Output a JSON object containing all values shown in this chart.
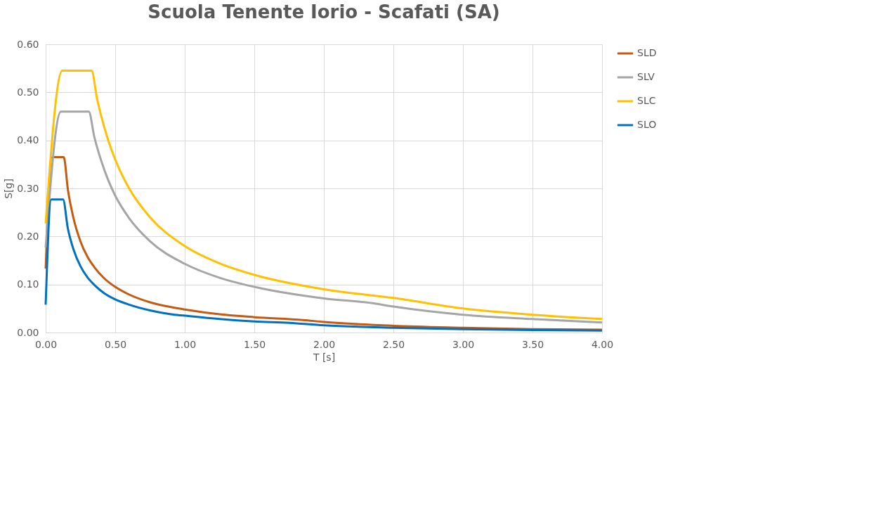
{
  "chart_data": {
    "type": "line",
    "title": "Scuola Tenente Iorio - Scafati (SA)",
    "xlabel": "T [s]",
    "ylabel": "S[g]",
    "xlim": [
      0,
      4
    ],
    "xticks": [
      {
        "value": 0,
        "label": "0.00"
      },
      {
        "value": 0.5,
        "label": "0.50"
      },
      {
        "value": 1,
        "label": "1.00"
      },
      {
        "value": 1.5,
        "label": "1.50"
      },
      {
        "value": 2,
        "label": "2.00"
      },
      {
        "value": 2.5,
        "label": "2.50"
      },
      {
        "value": 3,
        "label": "3.00"
      },
      {
        "value": 3.5,
        "label": "3.50"
      },
      {
        "value": 4,
        "label": "4.00"
      }
    ],
    "ylim": [
      0,
      0.6
    ],
    "yticks": [
      {
        "value": 0,
        "label": "0.00"
      },
      {
        "value": 0.1,
        "label": "0.10"
      },
      {
        "value": 0.2,
        "label": "0.20"
      },
      {
        "value": 0.3,
        "label": "0.30"
      },
      {
        "value": 0.4,
        "label": "0.40"
      },
      {
        "value": 0.5,
        "label": "0.50"
      },
      {
        "value": 0.6,
        "label": "0.60"
      }
    ],
    "grid": true,
    "legend": "right",
    "marker": "none",
    "line_style": "solid",
    "series": [
      {
        "name": "SLD",
        "color": "#c55a11",
        "x": [
          0,
          0.045,
          0.13,
          0.16,
          0.2,
          0.25,
          0.3,
          0.35,
          0.42,
          0.5,
          0.6,
          0.75,
          0.9,
          1.0,
          1.25,
          1.5,
          1.85,
          2.0,
          2.5,
          3.0,
          3.5,
          4.0
        ],
        "values": [
          0.133,
          0.365,
          0.365,
          0.297,
          0.238,
          0.19,
          0.158,
          0.136,
          0.113,
          0.095,
          0.079,
          0.063,
          0.053,
          0.048,
          0.038,
          0.032,
          0.026,
          0.022,
          0.014,
          0.01,
          0.007,
          0.006
        ]
      },
      {
        "name": "SLV",
        "color": "#a5a5a5",
        "x": [
          0,
          0.11,
          0.31,
          0.35,
          0.4,
          0.45,
          0.5,
          0.6,
          0.75,
          1.0,
          1.25,
          1.5,
          2.0,
          2.35,
          2.5,
          3.0,
          3.5,
          4.0
        ],
        "values": [
          0.177,
          0.46,
          0.46,
          0.407,
          0.357,
          0.317,
          0.285,
          0.238,
          0.19,
          0.143,
          0.114,
          0.095,
          0.071,
          0.061,
          0.054,
          0.037,
          0.028,
          0.021
        ]
      },
      {
        "name": "SLC",
        "color": "#ffc000",
        "x": [
          0,
          0.12,
          0.33,
          0.37,
          0.4,
          0.45,
          0.5,
          0.6,
          0.75,
          1.0,
          1.25,
          1.5,
          2.0,
          2.5,
          3.0,
          3.5,
          4.0
        ],
        "values": [
          0.227,
          0.545,
          0.545,
          0.486,
          0.45,
          0.4,
          0.36,
          0.3,
          0.24,
          0.18,
          0.144,
          0.12,
          0.09,
          0.072,
          0.05,
          0.037,
          0.028
        ]
      },
      {
        "name": "SLO",
        "color": "#0070c0",
        "x": [
          0,
          0.04,
          0.125,
          0.16,
          0.2,
          0.25,
          0.3,
          0.35,
          0.42,
          0.5,
          0.6,
          0.75,
          0.9,
          1.0,
          1.25,
          1.5,
          1.75,
          2.0,
          2.5,
          3.0,
          3.5,
          4.0
        ],
        "values": [
          0.058,
          0.277,
          0.277,
          0.216,
          0.173,
          0.138,
          0.115,
          0.099,
          0.082,
          0.069,
          0.058,
          0.046,
          0.038,
          0.035,
          0.028,
          0.023,
          0.02,
          0.015,
          0.01,
          0.007,
          0.005,
          0.004
        ]
      }
    ]
  }
}
